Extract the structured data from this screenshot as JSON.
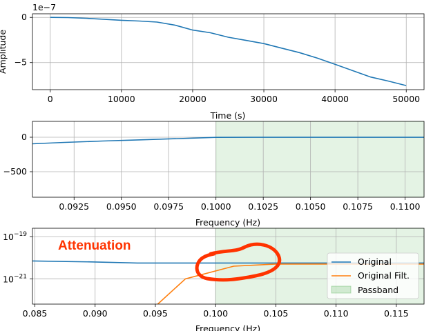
{
  "chart_data": [
    {
      "type": "line",
      "title": "",
      "xlabel": "Time (s)",
      "ylabel": "Amplitude",
      "offset_text": "1e−7",
      "xlim": [
        -2500,
        52500
      ],
      "ylim": [
        -8.0,
        0.4
      ],
      "xticks": [
        0,
        10000,
        20000,
        30000,
        40000,
        50000
      ],
      "xtick_labels": [
        "0",
        "10000",
        "20000",
        "30000",
        "40000",
        "50000"
      ],
      "yticks": [
        0,
        -5
      ],
      "ytick_labels": [
        "0",
        "−5"
      ],
      "grid": true,
      "color": "#1f77b4",
      "series": [
        {
          "name": "Amplitude",
          "x": [
            0,
            2500,
            5000,
            7500,
            10000,
            12500,
            15000,
            17500,
            20000,
            22500,
            25000,
            27500,
            30000,
            32500,
            35000,
            37500,
            40000,
            42500,
            45000,
            47500,
            50000
          ],
          "y": [
            0,
            -0.02,
            -0.1,
            -0.2,
            -0.32,
            -0.4,
            -0.52,
            -0.85,
            -1.4,
            -1.7,
            -2.2,
            -2.55,
            -2.9,
            -3.4,
            -3.9,
            -4.5,
            -5.2,
            -5.9,
            -6.6,
            -7.05,
            -7.55
          ]
        }
      ]
    },
    {
      "type": "line",
      "title": "",
      "xlabel": "Frequency (Hz)",
      "ylabel": "",
      "xlim": [
        0.0903,
        0.111
      ],
      "ylim": [
        -870,
        230
      ],
      "xticks": [
        0.0925,
        0.095,
        0.0975,
        0.1,
        0.1025,
        0.105,
        0.1075,
        0.11
      ],
      "xtick_labels": [
        "0.0925",
        "0.0950",
        "0.0975",
        "0.1000",
        "0.1025",
        "0.1050",
        "0.1075",
        "0.1100"
      ],
      "yticks": [
        0,
        -500
      ],
      "ytick_labels": [
        "0",
        "−500"
      ],
      "grid": true,
      "passband": [
        0.1,
        0.111
      ],
      "passband_color": "#2ca02c",
      "color": "#1f77b4",
      "series": [
        {
          "name": "Original",
          "x": [
            0.0903,
            0.092,
            0.094,
            0.096,
            0.098,
            0.1,
            0.102,
            0.104,
            0.106,
            0.108,
            0.111
          ],
          "y": [
            -95,
            -75,
            -55,
            -38,
            -20,
            -2,
            -1,
            -1,
            -1,
            -1,
            -1
          ]
        }
      ]
    },
    {
      "type": "line",
      "title": "",
      "xlabel": "Frequency (Hz)",
      "ylabel": "",
      "yscale": "log",
      "xlim": [
        0.0848,
        0.1173
      ],
      "ylim_log10": [
        -22.2,
        -18.6
      ],
      "xticks": [
        0.085,
        0.09,
        0.095,
        0.1,
        0.105,
        0.11,
        0.115
      ],
      "xtick_labels": [
        "0.085",
        "0.090",
        "0.095",
        "0.100",
        "0.105",
        "0.110",
        "0.115"
      ],
      "yticks_log10": [
        -19,
        -21
      ],
      "ytick_labels": [
        "10−19",
        "10−21"
      ],
      "grid": true,
      "passband": [
        0.1,
        0.1173
      ],
      "annotation": "Attenuation",
      "legend_location": "right",
      "legend": [
        "Original",
        "Original Filt.",
        "Passband"
      ],
      "series": [
        {
          "name": "Original",
          "color": "#1f77b4",
          "x": [
            0.0848,
            0.09,
            0.0935,
            0.1,
            0.105,
            0.11,
            0.1173
          ],
          "log10_y": [
            -20.15,
            -20.2,
            -20.25,
            -20.25,
            -20.25,
            -20.25,
            -20.25
          ]
        },
        {
          "name": "Original Filt.",
          "color": "#ff7f0e",
          "x": [
            0.0952,
            0.0975,
            0.0985,
            0.1015,
            0.105,
            0.11,
            0.1173
          ],
          "log10_y": [
            -22.2,
            -21.0,
            -20.85,
            -20.4,
            -20.3,
            -20.3,
            -20.3
          ]
        }
      ]
    }
  ],
  "legend_labels": {
    "original": "Original",
    "filtered": "Original Filt.",
    "passband": "Passband"
  },
  "annotation_text": "Attenuation",
  "annotation_color": "#ff3300"
}
